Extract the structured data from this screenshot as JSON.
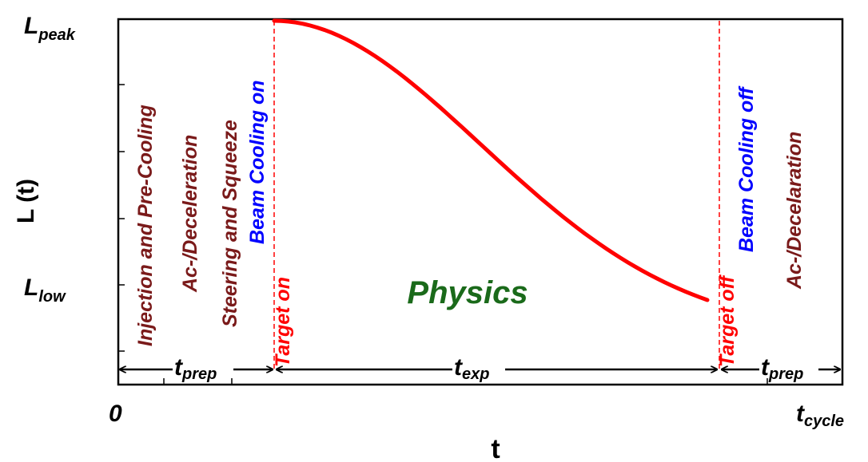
{
  "axes": {
    "y_label": "L (t)",
    "x_label": "t",
    "y_top": {
      "main": "L",
      "sub": "peak"
    },
    "y_low": {
      "main": "L",
      "sub": "low"
    },
    "x_start": "0",
    "x_end": {
      "main": "t",
      "sub": "cycle"
    }
  },
  "phases": {
    "injection": "Injection and Pre-Cooling",
    "accel_left": "Ac-/Deceleration",
    "steering": "Steering and Squeeze",
    "beam_on": "Beam Cooling on",
    "target_on": "Target on",
    "target_off": "Target off",
    "beam_off": "Beam Cooling off",
    "accel_right": "Ac-/Decelaration",
    "physics": "Physics"
  },
  "spans": {
    "prep_left": {
      "main": "t",
      "sub": "prep"
    },
    "exp": {
      "main": "t",
      "sub": "exp"
    },
    "prep_right": {
      "main": "t",
      "sub": "prep"
    }
  },
  "colors": {
    "curve": "#ff0000",
    "maroon": "#7a1a1a",
    "blue": "#0000ff",
    "green": "#1a6a1a",
    "axis": "#000000"
  }
}
